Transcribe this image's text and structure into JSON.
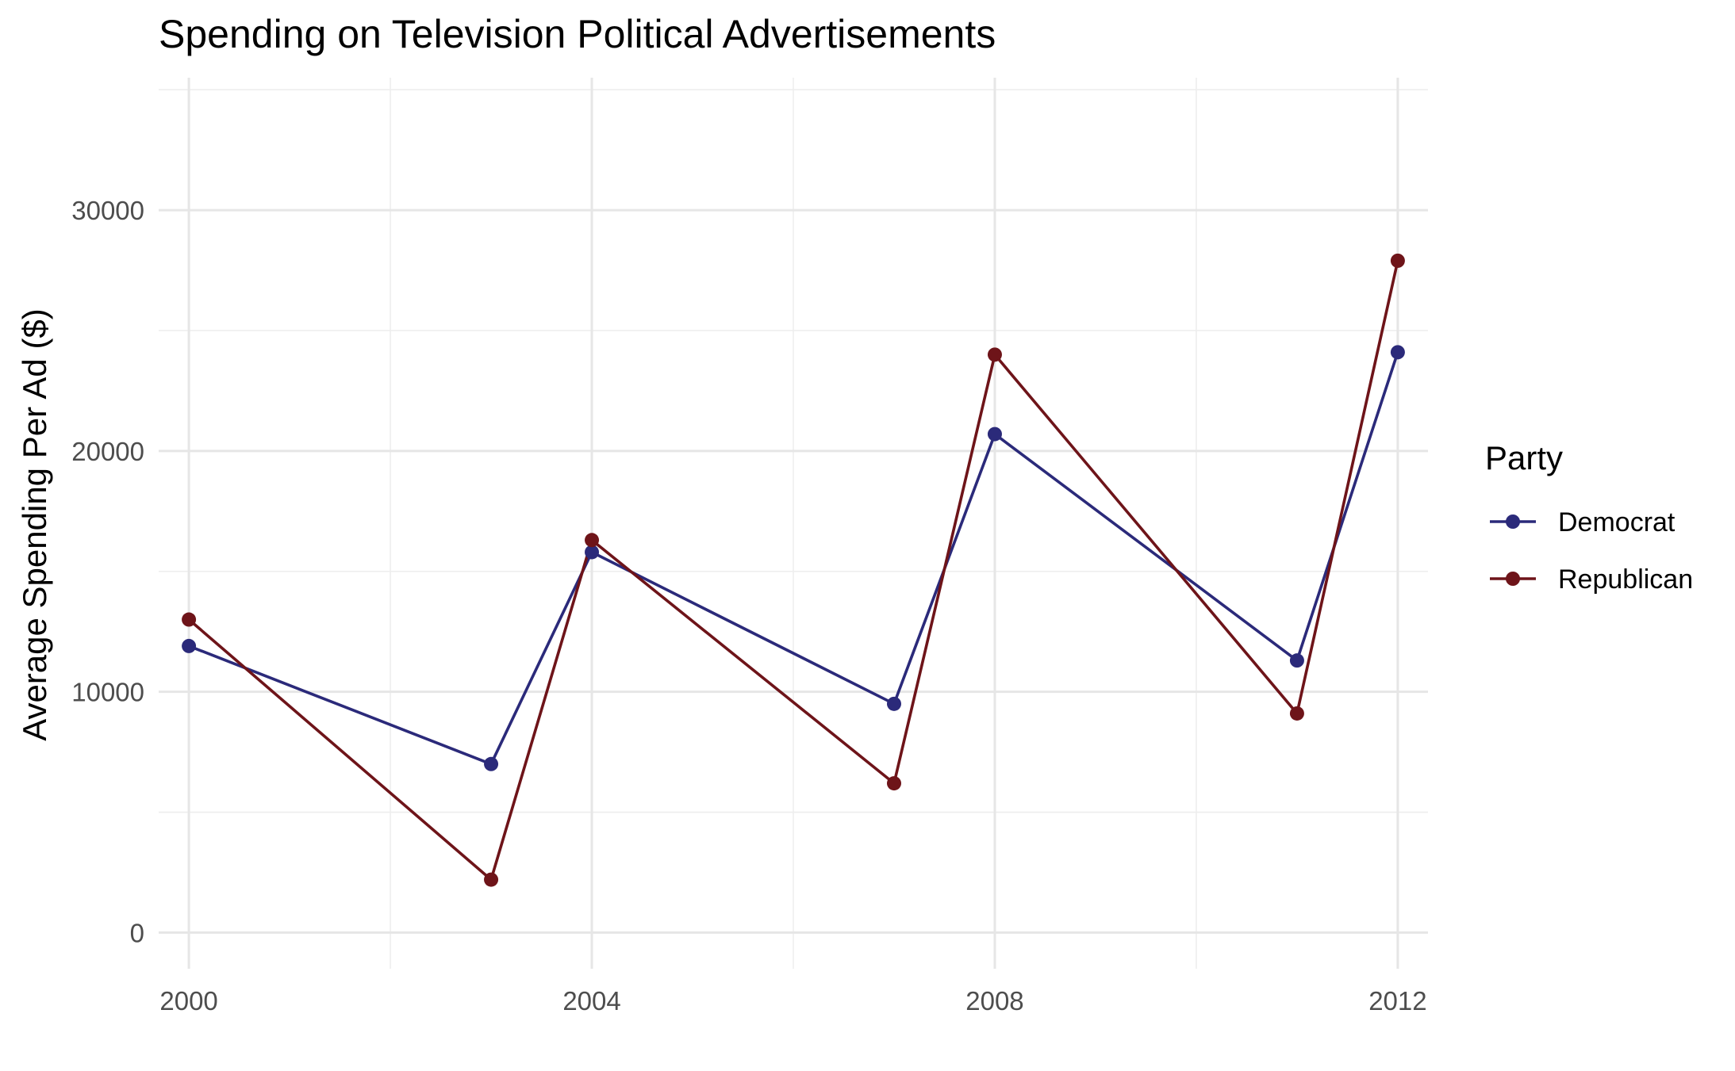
{
  "chart_data": {
    "type": "line",
    "title": "Spending on Television Political Advertisements",
    "xlabel": "",
    "ylabel": "Average Spending Per Ad ($)",
    "xlim": [
      1999.7,
      2012.3
    ],
    "ylim": [
      -1500,
      35500
    ],
    "x_ticks": [
      2000,
      2004,
      2008,
      2012
    ],
    "x_tick_labels": [
      "2000",
      "2004",
      "2008",
      "2012"
    ],
    "x_minor_ticks": [
      2002,
      2006,
      2010
    ],
    "y_ticks": [
      0,
      10000,
      20000,
      30000
    ],
    "y_tick_labels": [
      "0",
      "10000",
      "20000",
      "30000"
    ],
    "y_minor_ticks": [
      5000,
      15000,
      25000,
      35000
    ],
    "grid": true,
    "legend": {
      "title": "Party",
      "position": "right"
    },
    "series": [
      {
        "name": "Democrat",
        "color": "#2b2a7a",
        "points": [
          {
            "x": 2000,
            "y": 11900
          },
          {
            "x": 2003,
            "y": 7000
          },
          {
            "x": 2004,
            "y": 15800
          },
          {
            "x": 2007,
            "y": 9500
          },
          {
            "x": 2008,
            "y": 20700
          },
          {
            "x": 2011,
            "y": 11300
          },
          {
            "x": 2012,
            "y": 24100
          }
        ]
      },
      {
        "name": "Republican",
        "color": "#6e1419",
        "points": [
          {
            "x": 2000,
            "y": 13000
          },
          {
            "x": 2003,
            "y": 2200
          },
          {
            "x": 2004,
            "y": 16300
          },
          {
            "x": 2007,
            "y": 6200
          },
          {
            "x": 2008,
            "y": 24000
          },
          {
            "x": 2011,
            "y": 9100
          },
          {
            "x": 2012,
            "y": 27900
          }
        ]
      }
    ]
  }
}
